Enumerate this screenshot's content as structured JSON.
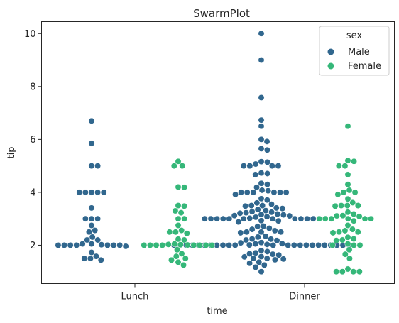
{
  "chart_data": {
    "type": "scatter",
    "subtype": "swarm",
    "title": "SwarmPlot",
    "xlabel": "time",
    "ylabel": "tip",
    "categories": [
      "Lunch",
      "Dinner"
    ],
    "ylim": [
      0.55,
      10.45
    ],
    "yticks": [
      2,
      4,
      6,
      8,
      10
    ],
    "legend": {
      "title": "sex",
      "placement": "top-right"
    },
    "series": [
      {
        "name": "Male",
        "color": "#31678e",
        "points": {
          "Lunch": [
            6.7,
            5.85,
            5.0,
            5.0,
            4.0,
            4.0,
            4.0,
            4.0,
            4.0,
            3.41,
            3.0,
            3.0,
            3.0,
            2.75,
            2.56,
            2.5,
            2.31,
            2.2,
            2.2,
            2.05,
            2.05,
            2.02,
            2.0,
            2.0,
            2.0,
            2.0,
            2.0,
            2.0,
            2.0,
            1.96,
            1.73,
            1.58,
            1.5,
            1.5,
            1.44
          ],
          "Dinner": [
            10.0,
            9.0,
            7.58,
            6.73,
            6.5,
            6.0,
            5.92,
            5.65,
            5.6,
            5.16,
            5.14,
            5.07,
            5.0,
            5.0,
            5.0,
            5.0,
            4.73,
            4.71,
            4.67,
            4.34,
            4.3,
            4.19,
            4.08,
            4.06,
            4.0,
            4.0,
            4.0,
            4.0,
            4.0,
            4.0,
            3.92,
            3.76,
            3.71,
            3.6,
            3.55,
            3.5,
            3.5,
            3.48,
            3.41,
            3.39,
            3.35,
            3.31,
            3.27,
            3.25,
            3.23,
            3.21,
            3.18,
            3.16,
            3.15,
            3.12,
            3.11,
            3.08,
            3.06,
            3.02,
            3.0,
            3.0,
            3.0,
            3.0,
            3.0,
            3.0,
            3.0,
            3.0,
            3.0,
            3.0,
            3.0,
            3.0,
            2.93,
            2.92,
            2.88,
            2.72,
            2.71,
            2.64,
            2.6,
            2.55,
            2.5,
            2.5,
            2.5,
            2.47,
            2.34,
            2.31,
            2.24,
            2.23,
            2.2,
            2.18,
            2.1,
            2.09,
            2.06,
            2.05,
            2.03,
            2.01,
            2.0,
            2.0,
            2.0,
            2.0,
            2.0,
            2.0,
            2.0,
            2.0,
            2.0,
            2.0,
            2.0,
            2.0,
            2.0,
            2.0,
            2.0,
            2.0,
            2.0,
            2.0,
            2.0,
            2.0,
            2.0,
            2.0,
            2.0,
            1.8,
            1.76,
            1.71,
            1.68,
            1.66,
            1.63,
            1.57,
            1.56,
            1.5,
            1.5,
            1.48,
            1.45,
            1.36,
            1.32,
            1.25,
            1.17,
            1.0
          ]
        }
      },
      {
        "name": "Female",
        "color": "#35b779",
        "points": {
          "Lunch": [
            5.17,
            5.0,
            5.0,
            4.2,
            4.19,
            3.5,
            3.48,
            3.3,
            3.23,
            3.0,
            3.0,
            2.75,
            2.56,
            2.5,
            2.5,
            2.45,
            2.23,
            2.2,
            2.05,
            2.03,
            2.02,
            2.01,
            2.0,
            2.0,
            2.0,
            2.0,
            2.0,
            2.0,
            2.0,
            2.0,
            1.83,
            1.68,
            1.58,
            1.5,
            1.44,
            1.36,
            1.25
          ],
          "Dinner": [
            6.5,
            5.2,
            5.17,
            5.0,
            5.0,
            4.67,
            4.3,
            4.08,
            4.0,
            4.0,
            3.92,
            3.75,
            3.61,
            3.5,
            3.5,
            3.5,
            3.48,
            3.25,
            3.18,
            3.12,
            3.11,
            3.09,
            3.0,
            3.0,
            3.0,
            3.0,
            3.0,
            3.0,
            2.92,
            2.75,
            2.6,
            2.55,
            2.5,
            2.5,
            2.47,
            2.3,
            2.24,
            2.2,
            2.18,
            2.05,
            2.0,
            2.0,
            2.0,
            1.83,
            1.66,
            1.5,
            1.1,
            1.0,
            1.0,
            1.0,
            1.0
          ]
        }
      }
    ]
  }
}
